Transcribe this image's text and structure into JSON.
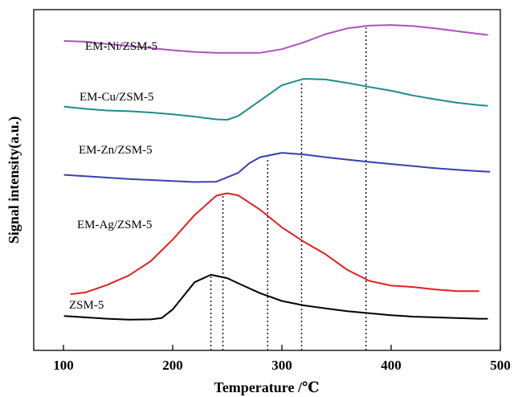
{
  "chart_data": {
    "type": "line",
    "xlabel": "Temperature /℃",
    "ylabel": "Signal intensity(a.u.)",
    "xlim": [
      100,
      500
    ],
    "x_ticks": [
      "100",
      "200",
      "300",
      "400",
      "500"
    ],
    "y_ticks_shown": false,
    "grid": false,
    "legend": "inline labels",
    "colors": {
      "EM-Ni/ZSM-5": "#b04fc0",
      "EM-Cu/ZSM-5": "#1e8c8c",
      "EM-Zn/ZSM-5": "#3a3fb0",
      "EM-Ag/ZSM-5": "#e02020",
      "ZSM-5": "#000000"
    },
    "peak_markers_x": [
      235,
      246,
      287,
      318,
      377
    ],
    "series": [
      {
        "name": "EM-Ni/ZSM-5",
        "x": [
          101,
          120,
          140,
          160,
          180,
          200,
          220,
          240,
          260,
          280,
          300,
          320,
          340,
          360,
          380,
          400,
          420,
          440,
          460,
          480,
          488
        ],
        "y": [
          0.908,
          0.906,
          0.899,
          0.893,
          0.887,
          0.881,
          0.876,
          0.873,
          0.873,
          0.873,
          0.884,
          0.904,
          0.928,
          0.945,
          0.953,
          0.955,
          0.952,
          0.945,
          0.937,
          0.929,
          0.926
        ]
      },
      {
        "name": "EM-Cu/ZSM-5",
        "x": [
          101,
          120,
          140,
          160,
          180,
          200,
          220,
          240,
          250,
          260,
          280,
          300,
          320,
          340,
          360,
          380,
          400,
          420,
          440,
          460,
          480,
          488
        ],
        "y": [
          0.715,
          0.709,
          0.704,
          0.702,
          0.698,
          0.693,
          0.686,
          0.678,
          0.677,
          0.688,
          0.733,
          0.778,
          0.797,
          0.795,
          0.785,
          0.773,
          0.762,
          0.748,
          0.737,
          0.727,
          0.72,
          0.718
        ]
      },
      {
        "name": "EM-Zn/ZSM-5",
        "x": [
          101,
          120,
          140,
          160,
          180,
          200,
          220,
          240,
          260,
          270,
          280,
          300,
          320,
          340,
          360,
          380,
          400,
          420,
          440,
          460,
          480,
          490
        ],
        "y": [
          0.515,
          0.511,
          0.507,
          0.503,
          0.5,
          0.497,
          0.494,
          0.495,
          0.521,
          0.549,
          0.567,
          0.58,
          0.575,
          0.567,
          0.56,
          0.553,
          0.547,
          0.541,
          0.535,
          0.53,
          0.526,
          0.524
        ]
      },
      {
        "name": "EM-Ag/ZSM-5",
        "x": [
          107,
          120,
          140,
          160,
          180,
          200,
          220,
          240,
          250,
          260,
          280,
          300,
          320,
          340,
          360,
          380,
          400,
          420,
          440,
          460,
          480
        ],
        "y": [
          0.165,
          0.17,
          0.192,
          0.22,
          0.262,
          0.325,
          0.397,
          0.454,
          0.461,
          0.455,
          0.413,
          0.361,
          0.319,
          0.282,
          0.236,
          0.204,
          0.19,
          0.186,
          0.179,
          0.174,
          0.174
        ]
      },
      {
        "name": "ZSM-5",
        "x": [
          101,
          120,
          140,
          160,
          180,
          190,
          200,
          210,
          220,
          235,
          250,
          260,
          280,
          300,
          320,
          340,
          360,
          380,
          400,
          420,
          440,
          460,
          480,
          488
        ],
        "y": [
          0.101,
          0.097,
          0.093,
          0.09,
          0.091,
          0.095,
          0.12,
          0.16,
          0.2,
          0.222,
          0.212,
          0.197,
          0.168,
          0.145,
          0.132,
          0.123,
          0.115,
          0.109,
          0.103,
          0.099,
          0.097,
          0.095,
          0.093,
          0.093
        ]
      }
    ]
  }
}
